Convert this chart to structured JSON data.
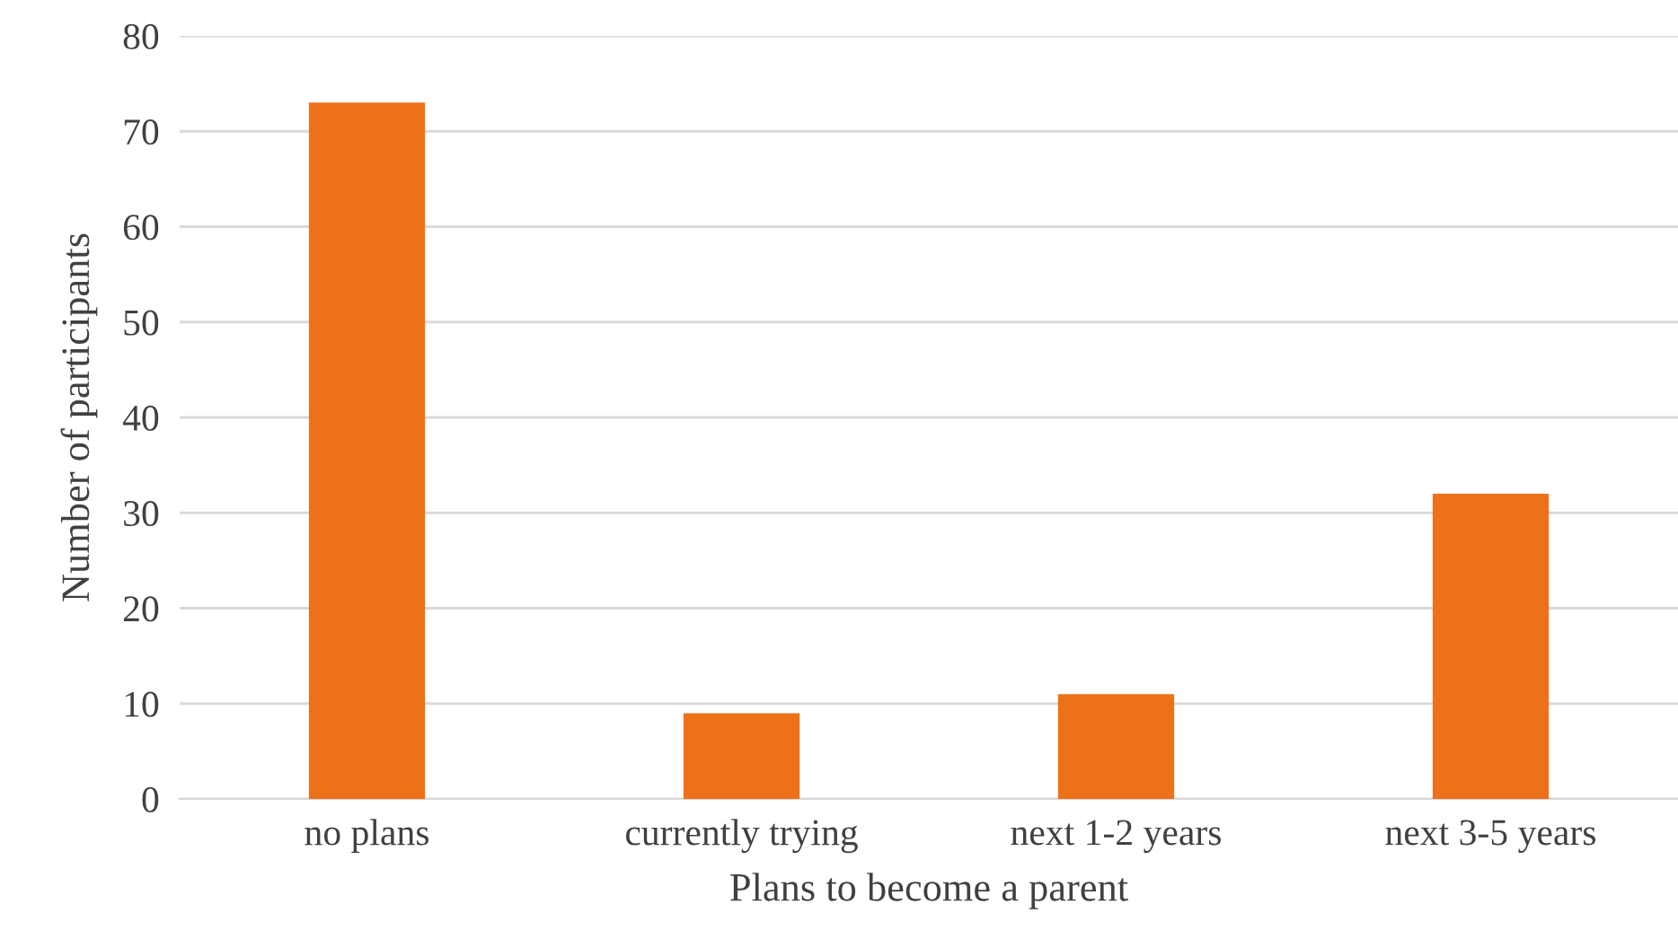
{
  "chart_data": {
    "type": "bar",
    "xlabel": "Plans to become a parent",
    "ylabel": "Number of participants",
    "categories": [
      "no plans",
      "currently trying",
      "next 1-2 years",
      "next 3-5 years"
    ],
    "values": [
      73,
      9,
      11,
      32
    ],
    "color": "#ed7118",
    "ylim": [
      0,
      80
    ],
    "yticks": [
      0,
      10,
      20,
      30,
      40,
      50,
      60,
      70,
      80
    ],
    "grid": "y"
  }
}
